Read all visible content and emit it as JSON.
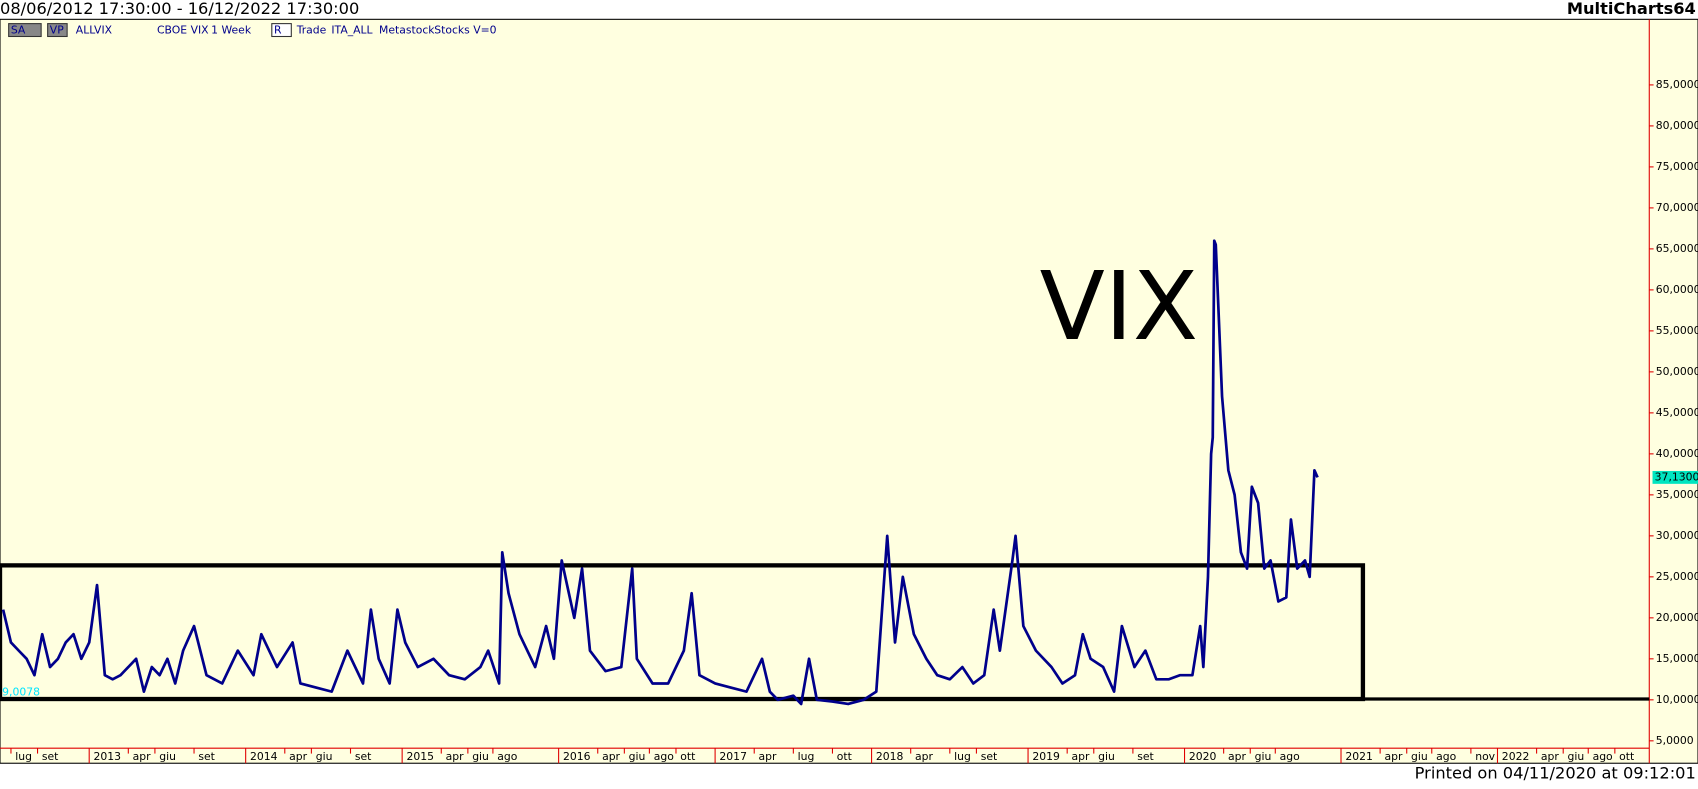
{
  "header": {
    "range": "08/06/2012 17:30:00 - 16/12/2022 17:30:00",
    "app": "MultiCharts64"
  },
  "toolbar": [
    "SA",
    "VP",
    "ALLVIX",
    "CBOE VIX",
    "1 Week",
    "R",
    "Trade",
    "ITA_ALL",
    "Metastock",
    "Stocks",
    "V=0"
  ],
  "footer": "Printed on 04/11/2020 at 09:12:01",
  "chart_data": {
    "type": "line",
    "annotation": "VIX",
    "indicator_label": "9,0078",
    "last_label": {
      "value": 37.13,
      "label": "37,1300"
    },
    "box": {
      "x": [
        2012.43,
        2021.14
      ],
      "y": [
        10.1,
        26.4
      ]
    },
    "hline": 10.1,
    "series": [
      {
        "color": "#00008b",
        "x": [
          2012.45,
          2012.5,
          2012.55,
          2012.6,
          2012.65,
          2012.7,
          2012.75,
          2012.8,
          2012.85,
          2012.9,
          2012.95,
          2013.0,
          2013.05,
          2013.1,
          2013.15,
          2013.2,
          2013.3,
          2013.35,
          2013.4,
          2013.45,
          2013.5,
          2013.55,
          2013.6,
          2013.67,
          2013.75,
          2013.85,
          2013.95,
          2014.05,
          2014.1,
          2014.2,
          2014.3,
          2014.35,
          2014.45,
          2014.55,
          2014.65,
          2014.75,
          2014.8,
          2014.85,
          2014.92,
          2014.97,
          2015.02,
          2015.1,
          2015.2,
          2015.3,
          2015.4,
          2015.5,
          2015.55,
          2015.62,
          2015.64,
          2015.68,
          2015.75,
          2015.85,
          2015.92,
          2015.97,
          2016.02,
          2016.1,
          2016.15,
          2016.2,
          2016.3,
          2016.4,
          2016.47,
          2016.5,
          2016.6,
          2016.7,
          2016.8,
          2016.85,
          2016.9,
          2017.0,
          2017.1,
          2017.2,
          2017.3,
          2017.35,
          2017.4,
          2017.5,
          2017.55,
          2017.6,
          2017.65,
          2017.75,
          2017.85,
          2017.95,
          2018.03,
          2018.1,
          2018.15,
          2018.2,
          2018.27,
          2018.35,
          2018.42,
          2018.5,
          2018.58,
          2018.65,
          2018.72,
          2018.78,
          2018.82,
          2018.9,
          2018.92,
          2018.97,
          2019.05,
          2019.15,
          2019.22,
          2019.3,
          2019.35,
          2019.4,
          2019.48,
          2019.55,
          2019.6,
          2019.68,
          2019.75,
          2019.82,
          2019.9,
          2019.97,
          2020.05,
          2020.1,
          2020.12,
          2020.15,
          2020.17,
          2020.18,
          2020.19,
          2020.2,
          2020.24,
          2020.28,
          2020.32,
          2020.36,
          2020.4,
          2020.43,
          2020.47,
          2020.51,
          2020.55,
          2020.6,
          2020.65,
          2020.68,
          2020.72,
          2020.77,
          2020.8,
          2020.83,
          2020.85
        ],
        "values": [
          21,
          17,
          16,
          15,
          13,
          18,
          14,
          15,
          17,
          18,
          15,
          17,
          24,
          13,
          12.5,
          13,
          15,
          11,
          14,
          13,
          15,
          12,
          16,
          19,
          13,
          12,
          16,
          13,
          18,
          14,
          17,
          12,
          11.5,
          11,
          16,
          12,
          21,
          15,
          12,
          21,
          17,
          14,
          15,
          13,
          12.5,
          14,
          16,
          12,
          28,
          23,
          18,
          14,
          19,
          15,
          27,
          20,
          26,
          16,
          13.5,
          14,
          26,
          15,
          12,
          12,
          16,
          23,
          13,
          12,
          11.5,
          11,
          15,
          11,
          10,
          10.5,
          9.5,
          15,
          10,
          9.8,
          9.5,
          10,
          11,
          30,
          17,
          25,
          18,
          15,
          13,
          12.5,
          14,
          12,
          13,
          21,
          16,
          27,
          30,
          19,
          16,
          14,
          12,
          13,
          18,
          15,
          14,
          11,
          19,
          14,
          16,
          12.5,
          12.5,
          13,
          13,
          19,
          14,
          25,
          40,
          42,
          66,
          65.5,
          47,
          38,
          35,
          28,
          26,
          36,
          34,
          26,
          27,
          22,
          22.5,
          32,
          26,
          27,
          25,
          38,
          37.13
        ]
      }
    ],
    "xlim": [
      2012.43,
      2022.97
    ],
    "xticks": [
      {
        "value": 2012.5,
        "label": "lug"
      },
      {
        "value": 2012.67,
        "label": "set"
      },
      {
        "value": 2013,
        "label": "2013"
      },
      {
        "value": 2013.25,
        "label": "apr"
      },
      {
        "value": 2013.42,
        "label": "giu"
      },
      {
        "value": 2013.67,
        "label": "set"
      },
      {
        "value": 2014,
        "label": "2014"
      },
      {
        "value": 2014.25,
        "label": "apr"
      },
      {
        "value": 2014.42,
        "label": "giu"
      },
      {
        "value": 2014.67,
        "label": "set"
      },
      {
        "value": 2015,
        "label": "2015"
      },
      {
        "value": 2015.25,
        "label": "apr"
      },
      {
        "value": 2015.42,
        "label": "giu"
      },
      {
        "value": 2015.58,
        "label": "ago"
      },
      {
        "value": 2016,
        "label": "2016"
      },
      {
        "value": 2016.25,
        "label": "apr"
      },
      {
        "value": 2016.42,
        "label": "giu"
      },
      {
        "value": 2016.58,
        "label": "ago"
      },
      {
        "value": 2016.75,
        "label": "ott"
      },
      {
        "value": 2017,
        "label": "2017"
      },
      {
        "value": 2017.25,
        "label": "apr"
      },
      {
        "value": 2017.5,
        "label": "lug"
      },
      {
        "value": 2017.75,
        "label": "ott"
      },
      {
        "value": 2018,
        "label": "2018"
      },
      {
        "value": 2018.25,
        "label": "apr"
      },
      {
        "value": 2018.5,
        "label": "lug"
      },
      {
        "value": 2018.67,
        "label": "set"
      },
      {
        "value": 2019,
        "label": "2019"
      },
      {
        "value": 2019.25,
        "label": "apr"
      },
      {
        "value": 2019.42,
        "label": "giu"
      },
      {
        "value": 2019.67,
        "label": "set"
      },
      {
        "value": 2020,
        "label": "2020"
      },
      {
        "value": 2020.25,
        "label": "apr"
      },
      {
        "value": 2020.42,
        "label": "giu"
      },
      {
        "value": 2020.58,
        "label": "ago"
      },
      {
        "value": 2021,
        "label": "2021"
      },
      {
        "value": 2021.25,
        "label": "apr"
      },
      {
        "value": 2021.42,
        "label": "giu"
      },
      {
        "value": 2021.58,
        "label": "ago"
      },
      {
        "value": 2021.83,
        "label": "nov"
      },
      {
        "value": 2022,
        "label": "2022"
      },
      {
        "value": 2022.25,
        "label": "apr"
      },
      {
        "value": 2022.42,
        "label": "giu"
      },
      {
        "value": 2022.58,
        "label": "ago"
      },
      {
        "value": 2022.75,
        "label": "ott"
      }
    ],
    "ylim": [
      4.1,
      93
    ],
    "yticks": [
      {
        "value": 5,
        "label": "5,0000"
      },
      {
        "value": 10,
        "label": "10,0000"
      },
      {
        "value": 15,
        "label": "15,0000"
      },
      {
        "value": 20,
        "label": "20,0000"
      },
      {
        "value": 25,
        "label": "25,0000"
      },
      {
        "value": 30,
        "label": "30,0000"
      },
      {
        "value": 35,
        "label": "35,0000"
      },
      {
        "value": 40,
        "label": "40,0000"
      },
      {
        "value": 45,
        "label": "45,0000"
      },
      {
        "value": 50,
        "label": "50,0000"
      },
      {
        "value": 55,
        "label": "55,0000"
      },
      {
        "value": 60,
        "label": "60,0000"
      },
      {
        "value": 65,
        "label": "65,0000"
      },
      {
        "value": 70,
        "label": "70,0000"
      },
      {
        "value": 75,
        "label": "75,0000"
      },
      {
        "value": 80,
        "label": "80,0000"
      },
      {
        "value": 85,
        "label": "85,0000"
      }
    ]
  }
}
